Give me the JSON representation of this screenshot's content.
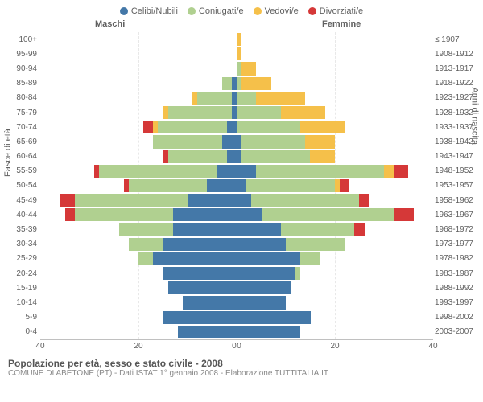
{
  "legend": [
    {
      "label": "Celibi/Nubili",
      "color": "#4478a8"
    },
    {
      "label": "Coniugati/e",
      "color": "#b0d090"
    },
    {
      "label": "Vedovi/e",
      "color": "#f5c04a"
    },
    {
      "label": "Divorziati/e",
      "color": "#d53838"
    }
  ],
  "header_male": "Maschi",
  "header_female": "Femmine",
  "axis_left": "Fasce di età",
  "axis_right": "Anni di nascita",
  "x_max": 40,
  "x_ticks_male": [
    40,
    20,
    0
  ],
  "x_ticks_female": [
    0,
    20,
    40
  ],
  "footer_title": "Popolazione per età, sesso e stato civile - 2008",
  "footer_sub": "COMUNE DI ABETONE (PT) - Dati ISTAT 1° gennaio 2008 - Elaborazione TUTTITALIA.IT",
  "colors": {
    "celibi": "#4478a8",
    "coniugati": "#b0d090",
    "vedovi": "#f5c04a",
    "divorziati": "#d53838",
    "grid": "#e8e8e8",
    "text": "#606060"
  },
  "rows": [
    {
      "age": "100+",
      "year": "≤ 1907",
      "m": [
        0,
        0,
        0,
        0
      ],
      "f": [
        0,
        0,
        1,
        0
      ]
    },
    {
      "age": "95-99",
      "year": "1908-1912",
      "m": [
        0,
        0,
        0,
        0
      ],
      "f": [
        0,
        0,
        1,
        0
      ]
    },
    {
      "age": "90-94",
      "year": "1913-1917",
      "m": [
        0,
        0,
        0,
        0
      ],
      "f": [
        0,
        1,
        3,
        0
      ]
    },
    {
      "age": "85-89",
      "year": "1918-1922",
      "m": [
        1,
        2,
        0,
        0
      ],
      "f": [
        0,
        1,
        6,
        0
      ]
    },
    {
      "age": "80-84",
      "year": "1923-1927",
      "m": [
        1,
        7,
        1,
        0
      ],
      "f": [
        0,
        4,
        10,
        0
      ]
    },
    {
      "age": "75-79",
      "year": "1928-1932",
      "m": [
        1,
        13,
        1,
        0
      ],
      "f": [
        0,
        9,
        9,
        0
      ]
    },
    {
      "age": "70-74",
      "year": "1933-1937",
      "m": [
        2,
        14,
        1,
        2
      ],
      "f": [
        0,
        13,
        9,
        0
      ]
    },
    {
      "age": "65-69",
      "year": "1938-1942",
      "m": [
        3,
        14,
        0,
        0
      ],
      "f": [
        1,
        13,
        6,
        0
      ]
    },
    {
      "age": "60-64",
      "year": "1943-1947",
      "m": [
        2,
        12,
        0,
        1
      ],
      "f": [
        1,
        14,
        5,
        0
      ]
    },
    {
      "age": "55-59",
      "year": "1948-1952",
      "m": [
        4,
        24,
        0,
        1
      ],
      "f": [
        4,
        26,
        2,
        3
      ]
    },
    {
      "age": "50-54",
      "year": "1953-1957",
      "m": [
        6,
        16,
        0,
        1
      ],
      "f": [
        2,
        18,
        1,
        2
      ]
    },
    {
      "age": "45-49",
      "year": "1958-1962",
      "m": [
        10,
        23,
        0,
        3
      ],
      "f": [
        3,
        22,
        0,
        2
      ]
    },
    {
      "age": "40-44",
      "year": "1963-1967",
      "m": [
        13,
        20,
        0,
        2
      ],
      "f": [
        5,
        27,
        0,
        4
      ]
    },
    {
      "age": "35-39",
      "year": "1968-1972",
      "m": [
        13,
        11,
        0,
        0
      ],
      "f": [
        9,
        15,
        0,
        2
      ]
    },
    {
      "age": "30-34",
      "year": "1973-1977",
      "m": [
        15,
        7,
        0,
        0
      ],
      "f": [
        10,
        12,
        0,
        0
      ]
    },
    {
      "age": "25-29",
      "year": "1978-1982",
      "m": [
        17,
        3,
        0,
        0
      ],
      "f": [
        13,
        4,
        0,
        0
      ]
    },
    {
      "age": "20-24",
      "year": "1983-1987",
      "m": [
        15,
        0,
        0,
        0
      ],
      "f": [
        12,
        1,
        0,
        0
      ]
    },
    {
      "age": "15-19",
      "year": "1988-1992",
      "m": [
        14,
        0,
        0,
        0
      ],
      "f": [
        11,
        0,
        0,
        0
      ]
    },
    {
      "age": "10-14",
      "year": "1993-1997",
      "m": [
        11,
        0,
        0,
        0
      ],
      "f": [
        10,
        0,
        0,
        0
      ]
    },
    {
      "age": "5-9",
      "year": "1998-2002",
      "m": [
        15,
        0,
        0,
        0
      ],
      "f": [
        15,
        0,
        0,
        0
      ]
    },
    {
      "age": "0-4",
      "year": "2003-2007",
      "m": [
        12,
        0,
        0,
        0
      ],
      "f": [
        13,
        0,
        0,
        0
      ]
    }
  ]
}
